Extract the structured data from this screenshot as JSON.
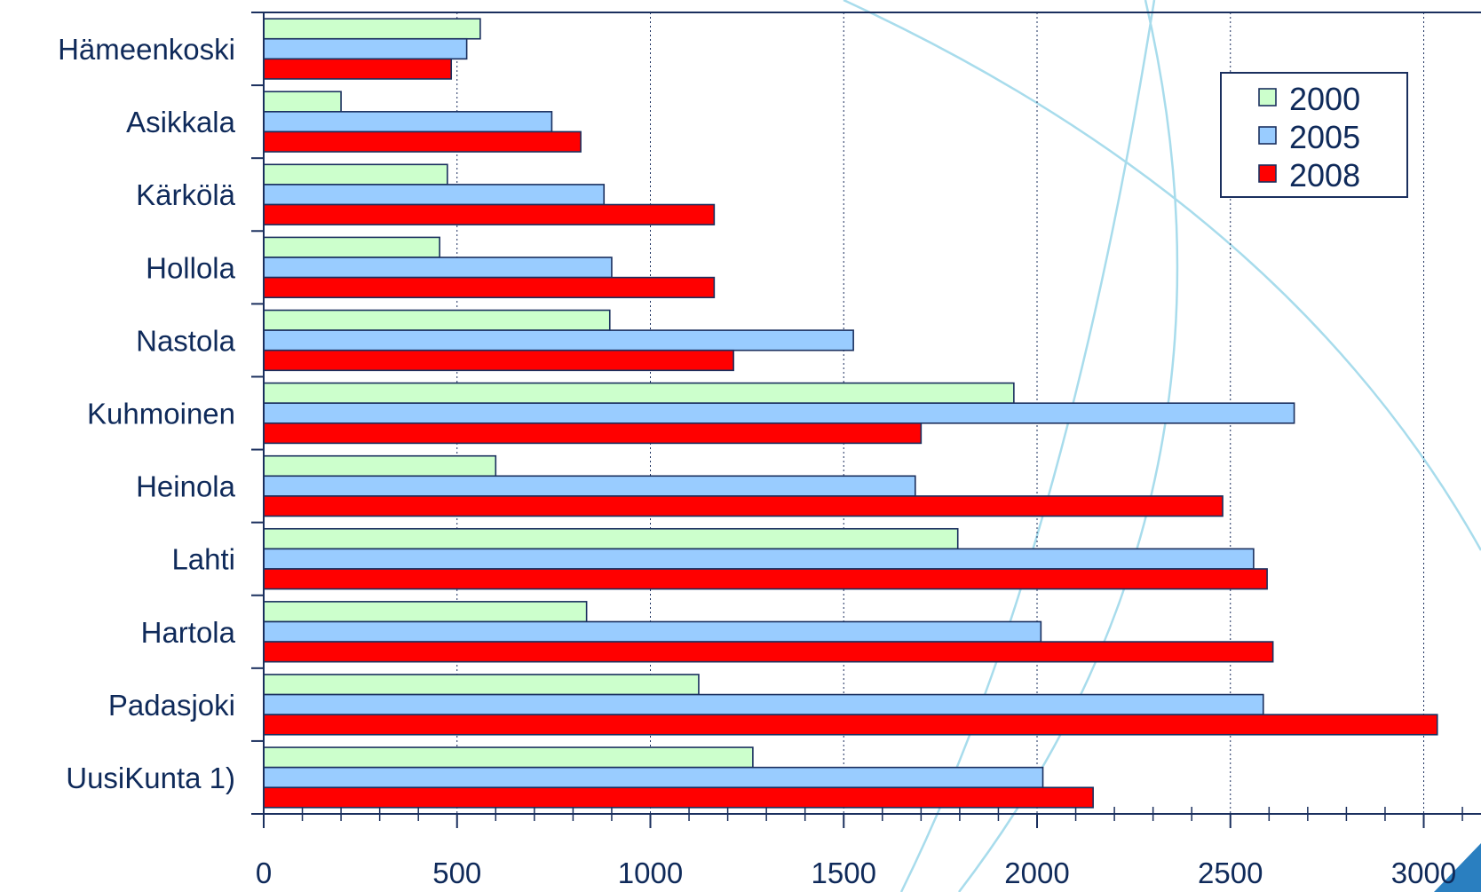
{
  "chart_data": {
    "type": "bar",
    "orientation": "horizontal",
    "categories": [
      "Hämeenkoski",
      "Asikkala",
      "Kärkölä",
      "Hollola",
      "Nastola",
      "Kuhmoinen",
      "Heinola",
      "Lahti",
      "Hartola",
      "Padasjoki",
      "UusiKunta 1)"
    ],
    "series": [
      {
        "name": "2000",
        "color": "#ccffcc",
        "values": [
          560,
          200,
          475,
          455,
          895,
          1940,
          600,
          1795,
          835,
          1125,
          1265
        ]
      },
      {
        "name": "2005",
        "color": "#99ccff",
        "values": [
          525,
          745,
          880,
          900,
          1525,
          2665,
          1685,
          2560,
          2010,
          2585,
          2015
        ]
      },
      {
        "name": "2008",
        "color": "#ff0000",
        "values": [
          485,
          820,
          1165,
          1165,
          1215,
          1700,
          2480,
          2595,
          2610,
          3035,
          2145
        ]
      }
    ],
    "xlim": [
      0,
      3000
    ],
    "xticks": [
      "0",
      "500",
      "1000",
      "1500",
      "2000",
      "2500",
      "3000"
    ],
    "grid": "vertical dotted",
    "legend_position": "top-right",
    "title": "",
    "xlabel": "",
    "ylabel": ""
  }
}
